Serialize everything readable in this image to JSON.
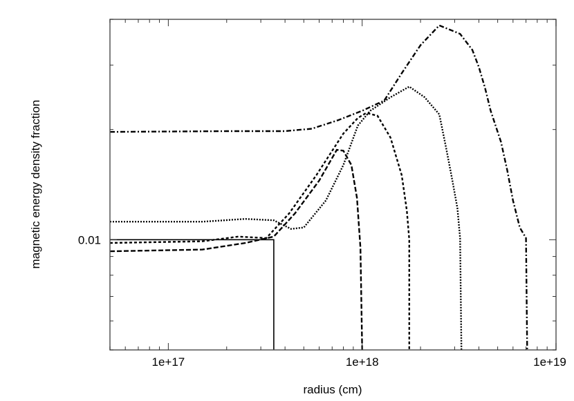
{
  "chart_data": {
    "type": "line",
    "title": "",
    "xlabel": "radius (cm)",
    "ylabel": "magnetic energy density fraction",
    "xscale": "log",
    "yscale": "log",
    "xlim": [
      5e+16,
      1e+19
    ],
    "ylim": [
      0.005,
      0.04
    ],
    "x_tick_labels": [
      "1e+17",
      "1e+18",
      "1e+19"
    ],
    "y_tick_labels": [
      "0.01"
    ],
    "grid": false,
    "legend": null,
    "series": [
      {
        "name": "solid",
        "style": "solid",
        "points": [
          [
            5e+16,
            0.01
          ],
          [
            3.5e+17,
            0.01
          ],
          [
            3.5e+17,
            0.005
          ]
        ]
      },
      {
        "name": "long-dash",
        "style": "long-dash",
        "points": [
          [
            5e+16,
            0.0093
          ],
          [
            1.5e+17,
            0.0094
          ],
          [
            2.5e+17,
            0.0098
          ],
          [
            3.5e+17,
            0.0102
          ],
          [
            4.5e+17,
            0.0118
          ],
          [
            6e+17,
            0.0145
          ],
          [
            7.4e+17,
            0.0176
          ],
          [
            8e+17,
            0.0175
          ],
          [
            8.8e+17,
            0.016
          ],
          [
            9.4e+17,
            0.013
          ],
          [
            9.8e+17,
            0.0095
          ],
          [
            1e+18,
            0.005
          ]
        ]
      },
      {
        "name": "short-dash",
        "style": "short-dash",
        "points": [
          [
            5e+16,
            0.0098
          ],
          [
            1.5e+17,
            0.0099
          ],
          [
            2.3e+17,
            0.0102
          ],
          [
            3.2e+17,
            0.0101
          ],
          [
            4.2e+17,
            0.0118
          ],
          [
            5.8e+17,
            0.015
          ],
          [
            8e+17,
            0.0195
          ],
          [
            9.5e+17,
            0.0215
          ],
          [
            1.05e+18,
            0.0222
          ],
          [
            1.2e+18,
            0.0218
          ],
          [
            1.4e+18,
            0.019
          ],
          [
            1.6e+18,
            0.015
          ],
          [
            1.7e+18,
            0.012
          ],
          [
            1.75e+18,
            0.01
          ],
          [
            1.75e+18,
            0.005
          ]
        ]
      },
      {
        "name": "dotted",
        "style": "dotted",
        "points": [
          [
            5e+16,
            0.0112
          ],
          [
            1.5e+17,
            0.0112
          ],
          [
            2.5e+17,
            0.0114
          ],
          [
            3.5e+17,
            0.0113
          ],
          [
            4.3e+17,
            0.0107
          ],
          [
            5e+17,
            0.0108
          ],
          [
            6.5e+17,
            0.0128
          ],
          [
            8e+17,
            0.016
          ],
          [
            9.5e+17,
            0.0205
          ],
          [
            1.1e+18,
            0.0225
          ],
          [
            1.4e+18,
            0.0245
          ],
          [
            1.75e+18,
            0.0262
          ],
          [
            2.1e+18,
            0.0245
          ],
          [
            2.5e+18,
            0.022
          ],
          [
            2.7e+18,
            0.018
          ],
          [
            2.9e+18,
            0.0148
          ],
          [
            3.1e+18,
            0.0122
          ],
          [
            3.2e+18,
            0.0101
          ],
          [
            3.25e+18,
            0.005
          ]
        ]
      },
      {
        "name": "dash-dot",
        "style": "dash-dot",
        "points": [
          [
            5e+16,
            0.0197
          ],
          [
            2e+17,
            0.0198
          ],
          [
            4e+17,
            0.0198
          ],
          [
            5.5e+17,
            0.0201
          ],
          [
            7.5e+17,
            0.0212
          ],
          [
            1e+18,
            0.0225
          ],
          [
            1.3e+18,
            0.024
          ],
          [
            1.6e+18,
            0.0285
          ],
          [
            2e+18,
            0.034
          ],
          [
            2.5e+18,
            0.0385
          ],
          [
            3.2e+18,
            0.0365
          ],
          [
            3.7e+18,
            0.033
          ],
          [
            4e+18,
            0.0296
          ],
          [
            4.3e+18,
            0.026
          ],
          [
            4.6e+18,
            0.0225
          ],
          [
            5.2e+18,
            0.0185
          ],
          [
            5.6e+18,
            0.0155
          ],
          [
            6e+18,
            0.0128
          ],
          [
            6.5e+18,
            0.0108
          ],
          [
            7e+18,
            0.0101
          ],
          [
            7.1e+18,
            0.005
          ]
        ]
      }
    ]
  }
}
